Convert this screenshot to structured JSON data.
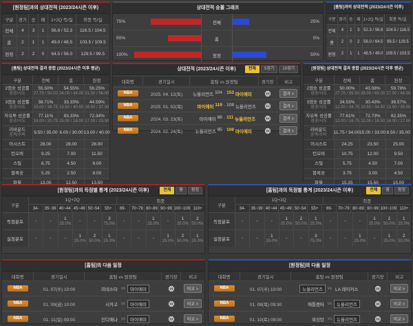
{
  "colors": {
    "accent_red": "#9e2626",
    "accent_blue": "#2d55a8",
    "bar_red": "#c22727",
    "bar_blue": "#2b49d4",
    "highlight_yellow": "#f2c33b",
    "badge_orange": "#cc7e26"
  },
  "h2h_home": {
    "title": "[원정팀]과의 상대전적 (2023/24시즌 이후)",
    "headers": [
      "구분",
      "경기",
      "승",
      "패",
      "1+2Q 득/실",
      "최종 득/실"
    ],
    "rows": [
      {
        "cells": [
          "전체",
          "4",
          "3",
          "1",
          "56.8 / 52.3",
          "116.5 / 104.5"
        ]
      },
      {
        "cells": [
          "홈",
          "2",
          "1",
          "1",
          "49.0 / 48.5",
          "103.5 / 109.5"
        ]
      },
      {
        "cells": [
          "원정",
          "2",
          "2",
          "0",
          "64.5 / 56.0",
          "129.5 / 99.5"
        ]
      }
    ]
  },
  "graph": {
    "title": "상대전적 승률 그래프",
    "rows": [
      {
        "label": "전체",
        "left_pct": "75%",
        "left_val": 75,
        "right_pct": "25%",
        "right_val": 25
      },
      {
        "label": "홈",
        "left_pct": "50%",
        "left_val": 50,
        "right_pct": "0%",
        "right_val": 0
      },
      {
        "label": "원정",
        "left_pct": "100%",
        "left_val": 100,
        "right_pct": "50%",
        "right_val": 50
      }
    ]
  },
  "h2h_away": {
    "title": "[홈팀]과의 상대전적 (2023/24시즌 이후)",
    "headers": [
      "구분",
      "경기",
      "승",
      "패",
      "1+2Q 득/실",
      "최종 득/실"
    ],
    "rows": [
      {
        "cells": [
          "전체",
          "4",
          "1",
          "3",
          "52.3 / 56.8",
          "104.5 / 116.5"
        ]
      },
      {
        "cells": [
          "홈",
          "2",
          "0",
          "2",
          "56.0 / 64.5",
          "99.5 / 129.5"
        ]
      },
      {
        "cells": [
          "원정",
          "2",
          "1",
          "1",
          "48.5 / 49.0",
          "109.5 / 103.5"
        ]
      }
    ]
  },
  "stats_home": {
    "title": "[홈팀] 상대전적 결과 종합 (2023/24시즌 이후 평균)",
    "headers": [
      "구분",
      "전체",
      "홈",
      "원정"
    ],
    "rows": [
      {
        "kind": "two",
        "label": "2점슛 성공률",
        "sub": "성공/시도",
        "vals": [
          {
            "v": "55.50%",
            "s": "27.75 / 50.00"
          },
          {
            "v": "54.55%",
            "s": "24.00 / 44.00"
          },
          {
            "v": "56.25%",
            "s": "31.50 / 56.00"
          }
        ]
      },
      {
        "kind": "two",
        "label": "3점슛 성공률",
        "sub": "성공/시도",
        "vals": [
          {
            "v": "38.71%",
            "s": "15.00 / 38.75"
          },
          {
            "v": "33.33%",
            "s": "13.50 / 40.50"
          },
          {
            "v": "44.59%",
            "s": "16.50 / 37.00"
          }
        ]
      },
      {
        "kind": "two",
        "label": "자유투 성공률",
        "sub": "성공/시도",
        "vals": [
          {
            "v": "77.11%",
            "s": "16.00 / 20.75"
          },
          {
            "v": "83.33%",
            "s": "15.00 / 18.00"
          },
          {
            "v": "72.34%",
            "s": "17.00 / 23.50"
          }
        ]
      },
      {
        "kind": "two",
        "label": "리바운드",
        "sub": "공격/수비",
        "vals": [
          {
            "v": "9.50 / 35.00",
            "s": ""
          },
          {
            "v": "6.00 / 30.00",
            "s": ""
          },
          {
            "v": "13.00 / 40.00",
            "s": ""
          }
        ]
      },
      {
        "kind": "one",
        "label": "어시스트",
        "sub": "",
        "vals": [
          {
            "v": "28.00",
            "s": ""
          },
          {
            "v": "28.00",
            "s": ""
          },
          {
            "v": "28.00",
            "s": ""
          }
        ]
      },
      {
        "kind": "one",
        "label": "턴오버",
        "sub": "",
        "vals": [
          {
            "v": "9.25",
            "s": ""
          },
          {
            "v": "7.00",
            "s": ""
          },
          {
            "v": "11.50",
            "s": ""
          }
        ]
      },
      {
        "kind": "one",
        "label": "스틸",
        "sub": "",
        "vals": [
          {
            "v": "6.75",
            "s": ""
          },
          {
            "v": "4.50",
            "s": ""
          },
          {
            "v": "9.00",
            "s": ""
          }
        ]
      },
      {
        "kind": "one",
        "label": "블록슛",
        "sub": "",
        "vals": [
          {
            "v": "5.25",
            "s": ""
          },
          {
            "v": "2.50",
            "s": ""
          },
          {
            "v": "8.00",
            "s": ""
          }
        ]
      },
      {
        "kind": "one",
        "label": "파울",
        "sub": "",
        "vals": [
          {
            "v": "13.00",
            "s": ""
          },
          {
            "v": "12.50",
            "s": ""
          },
          {
            "v": "13.50",
            "s": ""
          }
        ]
      }
    ]
  },
  "stats_away": {
    "title": "[원정팀] 상대전적 결과 종합 (2023/24시즌 이후 평균)",
    "headers": [
      "구분",
      "전체",
      "홈",
      "원정"
    ],
    "rows": [
      {
        "kind": "two",
        "label": "2점슛 성공률",
        "sub": "성공/시도",
        "vals": [
          {
            "v": "50.00%",
            "s": "27.75 / 55.50"
          },
          {
            "v": "43.08%",
            "s": "28.00 / 65.00"
          },
          {
            "v": "59.78%",
            "s": "27.50 / 46.00"
          }
        ]
      },
      {
        "kind": "two",
        "label": "3점슛 성공률",
        "sub": "성공/시도",
        "vals": [
          {
            "v": "34.53%",
            "s": "12.00 / 34.75"
          },
          {
            "v": "30.43%",
            "s": "10.50 / 34.50"
          },
          {
            "v": "38.57%",
            "s": "13.50 / 35.00"
          }
        ]
      },
      {
        "kind": "two",
        "label": "자유투 성공률",
        "sub": "성공/시도",
        "vals": [
          {
            "v": "77.61%",
            "s": "13.00 / 16.75"
          },
          {
            "v": "72.73%",
            "s": "12.00 / 16.50"
          },
          {
            "v": "82.35%",
            "s": "14.00 / 17.00"
          }
        ]
      },
      {
        "kind": "two",
        "label": "리바운드",
        "sub": "공격/수비",
        "vals": [
          {
            "v": "11.75 / 34.00",
            "s": ""
          },
          {
            "v": "15.00 / 33.00",
            "s": ""
          },
          {
            "v": "8.50 / 35.00",
            "s": ""
          }
        ]
      },
      {
        "kind": "one",
        "label": "어시스트",
        "sub": "",
        "vals": [
          {
            "v": "24.25",
            "s": ""
          },
          {
            "v": "23.50",
            "s": ""
          },
          {
            "v": "25.00",
            "s": ""
          }
        ]
      },
      {
        "kind": "one",
        "label": "턴오버",
        "sub": "",
        "vals": [
          {
            "v": "10.75",
            "s": ""
          },
          {
            "v": "12.00",
            "s": ""
          },
          {
            "v": "9.50",
            "s": ""
          }
        ]
      },
      {
        "kind": "one",
        "label": "스틸",
        "sub": "",
        "vals": [
          {
            "v": "5.75",
            "s": ""
          },
          {
            "v": "4.50",
            "s": ""
          },
          {
            "v": "7.00",
            "s": ""
          }
        ]
      },
      {
        "kind": "one",
        "label": "블록슛",
        "sub": "",
        "vals": [
          {
            "v": "3.75",
            "s": ""
          },
          {
            "v": "3.00",
            "s": ""
          },
          {
            "v": "4.50",
            "s": ""
          }
        ]
      },
      {
        "kind": "one",
        "label": "파울",
        "sub": "",
        "vals": [
          {
            "v": "15.25",
            "s": ""
          },
          {
            "v": "15.50",
            "s": ""
          },
          {
            "v": "15.00",
            "s": ""
          }
        ]
      }
    ]
  },
  "games": {
    "title": "상대전적 (2023/24시즌 이후)",
    "tabs": [
      {
        "label": "전체",
        "active": "1"
      },
      {
        "label": "5경기",
        "active": "0"
      },
      {
        "label": "10경기",
        "active": "0"
      }
    ],
    "headers": {
      "league": "대회명",
      "date": "경기일시",
      "match": "홈팀 vs 원정팀",
      "stadium": "경기장",
      "note": "비고"
    },
    "rows": [
      {
        "league": "NBA",
        "date": "2025. 04. 12(토)",
        "home": "뉴올리언즈",
        "hs": "104",
        "dash": "-",
        "as": "153",
        "away": "마이애미",
        "hw": "0",
        "aw": "1",
        "note": "결과 >"
      },
      {
        "league": "NBA",
        "date": "2025. 01. 02(목)",
        "home": "마이애미",
        "hs": "119",
        "dash": "-",
        "as": "108",
        "away": "뉴올리언즈",
        "hw": "1",
        "aw": "0",
        "note": "결과 >"
      },
      {
        "league": "NBA",
        "date": "2024. 03. 23(토)",
        "home": "마이애미",
        "hs": "88",
        "dash": "-",
        "as": "111",
        "away": "뉴올리언즈",
        "hw": "0",
        "aw": "1",
        "note": "결과 >"
      },
      {
        "league": "NBA",
        "date": "2024. 02. 24(토)",
        "home": "뉴올리언즈",
        "hs": "95",
        "dash": "-",
        "as": "106",
        "away": "마이애미",
        "hw": "0",
        "aw": "1",
        "note": "결과 >"
      }
    ]
  },
  "dist_home": {
    "title": "[원정팀]과의 득점별 통계 (2023/24시즌 이후)",
    "tabs": [
      {
        "label": "전체",
        "active": "1"
      },
      {
        "label": "홈",
        "active": "0"
      },
      {
        "label": "원정",
        "active": "0"
      }
    ],
    "col_label": "구분",
    "groups": [
      {
        "label": "1Q+2Q"
      },
      {
        "label": "최종"
      }
    ],
    "ranges": [
      "34-",
      "35~39",
      "40~44",
      "45~49",
      "50~54",
      "55+",
      "69-",
      "70~79",
      "80~89",
      "90~99",
      "100~109",
      "110+"
    ],
    "rows": [
      {
        "label": "득점분포",
        "cells": [
          {
            "n": "-",
            "p": ""
          },
          {
            "n": "-",
            "p": ""
          },
          {
            "n": "1",
            "p": "25.0%"
          },
          {
            "n": "-",
            "p": ""
          },
          {
            "n": "-",
            "p": ""
          },
          {
            "n": "3",
            "p": "75.0%"
          },
          {
            "n": "-",
            "p": ""
          },
          {
            "n": "-",
            "p": ""
          },
          {
            "n": "1",
            "p": "25.0%"
          },
          {
            "n": "-",
            "p": ""
          },
          {
            "n": "1",
            "p": "25.0%"
          },
          {
            "n": "2",
            "p": "50.0%"
          }
        ]
      },
      {
        "label": "실점분포",
        "cells": [
          {
            "n": "-",
            "p": ""
          },
          {
            "n": "-",
            "p": ""
          },
          {
            "n": "-",
            "p": ""
          },
          {
            "n": "1",
            "p": "25.0%"
          },
          {
            "n": "2",
            "p": "50.0%"
          },
          {
            "n": "1",
            "p": "25.0%"
          },
          {
            "n": "-",
            "p": ""
          },
          {
            "n": "-",
            "p": ""
          },
          {
            "n": "-",
            "p": ""
          },
          {
            "n": "1",
            "p": "25.0%"
          },
          {
            "n": "2",
            "p": "50.0%"
          },
          {
            "n": "1",
            "p": "25.0%"
          }
        ]
      }
    ]
  },
  "dist_away": {
    "title": "[홈팀]과의 득점별 통계 (2023/24시즌 이후)",
    "tabs": [
      {
        "label": "전체",
        "active": "1"
      },
      {
        "label": "홈",
        "active": "0"
      },
      {
        "label": "원정",
        "active": "0"
      }
    ],
    "col_label": "구분",
    "groups": [
      {
        "label": "1Q+2Q"
      },
      {
        "label": "최종"
      }
    ],
    "ranges": [
      "34-",
      "35~39",
      "40~44",
      "45~49",
      "50~54",
      "55+",
      "69-",
      "70~79",
      "80~89",
      "90~99",
      "100~109",
      "110+"
    ],
    "rows": [
      {
        "label": "득점분포",
        "cells": [
          {
            "n": "-",
            "p": ""
          },
          {
            "n": "-",
            "p": ""
          },
          {
            "n": "-",
            "p": ""
          },
          {
            "n": "1",
            "p": "25.0%"
          },
          {
            "n": "2",
            "p": "50.0%"
          },
          {
            "n": "1",
            "p": "25.0%"
          },
          {
            "n": "-",
            "p": ""
          },
          {
            "n": "-",
            "p": ""
          },
          {
            "n": "-",
            "p": ""
          },
          {
            "n": "1",
            "p": "25.0%"
          },
          {
            "n": "2",
            "p": "50.0%"
          },
          {
            "n": "1",
            "p": "25.0%"
          }
        ]
      },
      {
        "label": "실점분포",
        "cells": [
          {
            "n": "-",
            "p": ""
          },
          {
            "n": "-",
            "p": ""
          },
          {
            "n": "1",
            "p": "25.0%"
          },
          {
            "n": "-",
            "p": ""
          },
          {
            "n": "-",
            "p": ""
          },
          {
            "n": "3",
            "p": "75.0%"
          },
          {
            "n": "-",
            "p": ""
          },
          {
            "n": "-",
            "p": ""
          },
          {
            "n": "1",
            "p": "25.0%"
          },
          {
            "n": "-",
            "p": ""
          },
          {
            "n": "1",
            "p": "25.0%"
          },
          {
            "n": "2",
            "p": "50.0%"
          }
        ]
      }
    ]
  },
  "sched_home": {
    "title": "[홈팀]의 다음 일정",
    "headers": {
      "league": "대회명",
      "date": "경기일시",
      "match": "홈팀 vs 원정팀",
      "stadium": "경기장",
      "note": "비고"
    },
    "rows": [
      {
        "league": "NBA",
        "date": "01. 07(수) 10:00",
        "home": "미네소타",
        "vs": "vs",
        "away": "마이애미",
        "hb": "0",
        "ab": "1",
        "note": "비교 >"
      },
      {
        "league": "NBA",
        "date": "01. 09(금) 10:00",
        "home": "시카고",
        "vs": "vs",
        "away": "마이애미",
        "hb": "0",
        "ab": "1",
        "note": "비교 >"
      },
      {
        "league": "NBA",
        "date": "01. 11(일) 09:00",
        "home": "인디애나",
        "vs": "vs",
        "away": "마이애미",
        "hb": "0",
        "ab": "1",
        "note": "비교 >"
      }
    ]
  },
  "sched_away": {
    "title": "[원정팀]의 다음 일정",
    "headers": {
      "league": "대회명",
      "date": "경기일시",
      "match": "홈팀 vs 원정팀",
      "stadium": "경기장",
      "note": "비고"
    },
    "rows": [
      {
        "league": "NBA",
        "date": "01. 07(수) 10:00",
        "home": "뉴올리언즈",
        "vs": "vs",
        "away": "LA 레이커스",
        "hb": "1",
        "ab": "0",
        "note": "비교 >"
      },
      {
        "league": "NBA",
        "date": "01. 08(목) 09:30",
        "home": "애틀랜타",
        "vs": "vs",
        "away": "뉴올리언즈",
        "hb": "0",
        "ab": "1",
        "note": "비교 >"
      },
      {
        "league": "NBA",
        "date": "01. 10(토) 09:00",
        "home": "워싱턴",
        "vs": "vs",
        "away": "뉴올리언즈",
        "hb": "0",
        "ab": "1",
        "note": "비교 >"
      }
    ]
  }
}
